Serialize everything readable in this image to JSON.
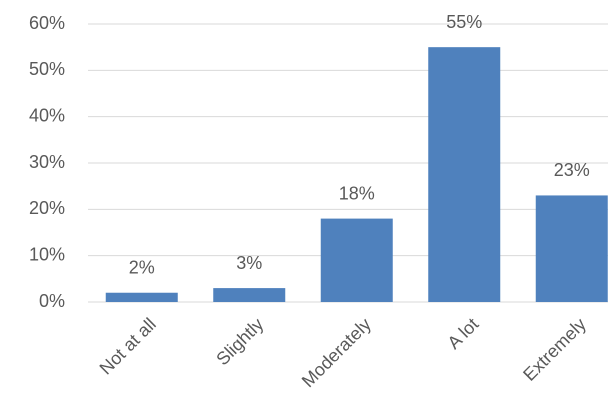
{
  "chart_data": {
    "type": "bar",
    "categories": [
      "Not at all",
      "Slightly",
      "Moderately",
      "A lot",
      "Extremely"
    ],
    "values": [
      2,
      3,
      18,
      55,
      23
    ],
    "value_labels": [
      "2%",
      "3%",
      "18%",
      "55%",
      "23%"
    ],
    "color": "#4f81bd",
    "ylim": [
      0,
      60
    ],
    "yticks": [
      {
        "value": 0,
        "label": "0%"
      },
      {
        "value": 10,
        "label": "10%"
      },
      {
        "value": 20,
        "label": "20%"
      },
      {
        "value": 30,
        "label": "30%"
      },
      {
        "value": 40,
        "label": "40%"
      },
      {
        "value": 50,
        "label": "50%"
      },
      {
        "value": 60,
        "label": "60%"
      }
    ],
    "grid": true
  }
}
